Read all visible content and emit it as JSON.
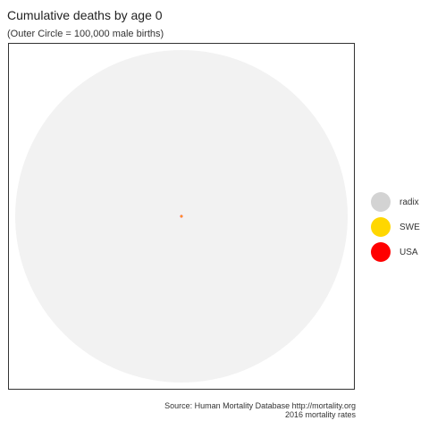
{
  "chart_data": {
    "type": "area",
    "title": "Cumulative deaths by age 0",
    "subtitle": "(Outer Circle = 100,000 male births)",
    "outer_circle_total": 100000,
    "series": [
      {
        "name": "radix",
        "value": 100000,
        "color": "#d3d3d3"
      },
      {
        "name": "SWE",
        "value": 3,
        "color": "#ffd700"
      },
      {
        "name": "USA",
        "value": 6,
        "color": "#ff0000"
      }
    ],
    "legend_position": "right",
    "grid": false,
    "caption_line1": "Source: Human Mortality Database http://mortality.org",
    "caption_line2": "2016 mortality rates"
  },
  "colors": {
    "background_circle": "#f2f2f2",
    "panel_border": "#333333"
  }
}
